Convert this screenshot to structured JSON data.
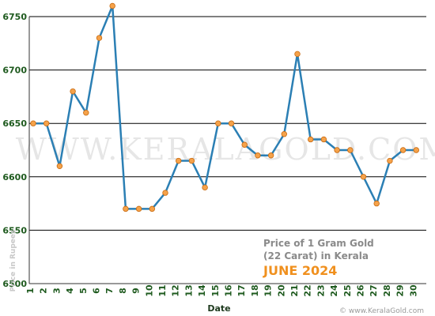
{
  "chart_data": {
    "type": "line",
    "title_line1": "Price of 1 Gram Gold",
    "title_line2": "(22 Carat) in Kerala",
    "subtitle": "JUNE 2024",
    "xlabel": "Date",
    "ylabel": "Price in Rupees",
    "watermark": "WWW.KERALAGOLD.COM",
    "source": "© www.KeralaGold.com",
    "ylim": [
      6500,
      6750
    ],
    "yticks": [
      6500,
      6550,
      6600,
      6650,
      6700,
      6750
    ],
    "x": [
      1,
      2,
      3,
      4,
      5,
      6,
      7,
      8,
      9,
      10,
      11,
      12,
      13,
      14,
      15,
      16,
      17,
      18,
      19,
      20,
      21,
      22,
      23,
      24,
      25,
      26,
      27,
      28,
      29,
      30
    ],
    "values": [
      6650,
      6650,
      6610,
      6680,
      6660,
      6730,
      6760,
      6570,
      6570,
      6570,
      6585,
      6615,
      6615,
      6590,
      6650,
      6650,
      6630,
      6620,
      6620,
      6640,
      6715,
      6635,
      6635,
      6625,
      6625,
      6600,
      6575,
      6615,
      6625,
      6625
    ],
    "grid": true,
    "colors": {
      "line": "#2b7fb4",
      "marker": "#f5a24a",
      "marker_edge": "#c86a10",
      "grid": "#000000"
    }
  }
}
